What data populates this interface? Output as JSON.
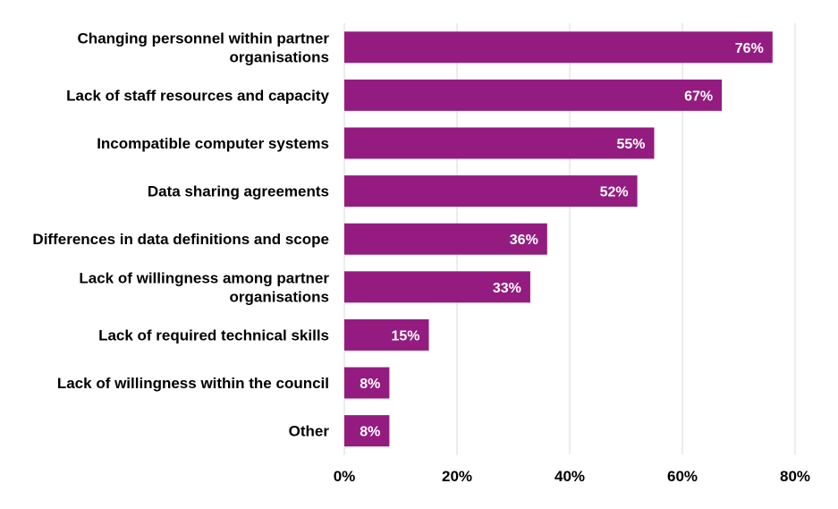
{
  "chart_data": {
    "type": "bar",
    "orientation": "horizontal",
    "categories": [
      [
        "Changing personnel within partner",
        "organisations"
      ],
      [
        "Lack of staff resources and capacity"
      ],
      [
        "Incompatible computer systems"
      ],
      [
        "Data sharing agreements"
      ],
      [
        "Differences in data definitions and scope"
      ],
      [
        "Lack of willingness among partner",
        "organisations"
      ],
      [
        "Lack of required technical skills"
      ],
      [
        "Lack of willingness within the council"
      ],
      [
        "Other"
      ]
    ],
    "values": [
      76,
      67,
      55,
      52,
      36,
      33,
      15,
      8,
      8
    ],
    "data_labels": [
      "76%",
      "67%",
      "55%",
      "52%",
      "36%",
      "33%",
      "15%",
      "8%",
      "8%"
    ],
    "xlim": [
      0,
      80
    ],
    "xticks": [
      0,
      20,
      40,
      60,
      80
    ],
    "xtick_labels": [
      "0%",
      "20%",
      "40%",
      "60%",
      "80%"
    ],
    "grid": true,
    "bar_color": "#941b80",
    "label_color": "#ffffff",
    "title": "",
    "xlabel": "",
    "ylabel": ""
  }
}
